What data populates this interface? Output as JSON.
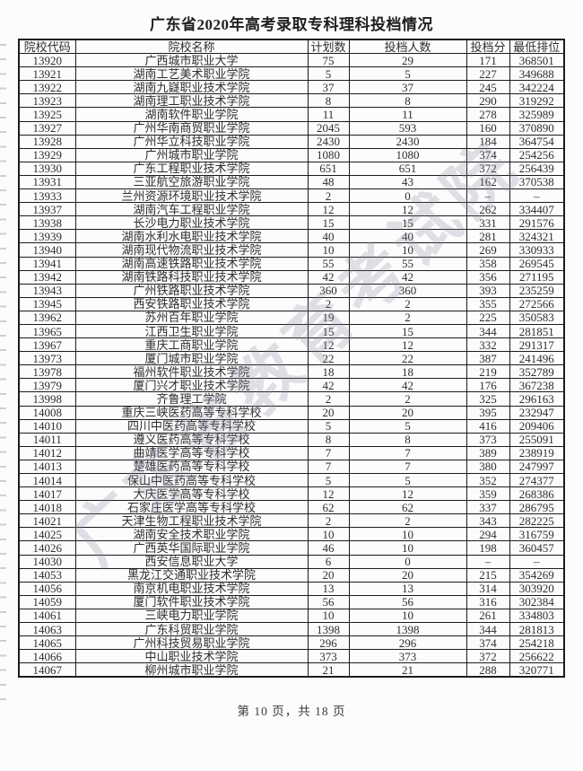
{
  "title": "广东省2020年高考录取专科理科投档情况",
  "watermark": "广东省教育考试院",
  "footer": {
    "page_info": "第 10 页，共 18 页"
  },
  "table": {
    "headers": [
      "院校代码",
      "院校名称",
      "计划数",
      "投档人数",
      "投档分",
      "最低排位"
    ],
    "rows": [
      [
        "13920",
        "广西城市职业大学",
        "75",
        "29",
        "171",
        "368501"
      ],
      [
        "13921",
        "湖南工艺美术职业学院",
        "5",
        "5",
        "227",
        "349688"
      ],
      [
        "13922",
        "湖南九嶷职业技术学院",
        "37",
        "37",
        "245",
        "342224"
      ],
      [
        "13923",
        "湖南理工职业技术学院",
        "8",
        "8",
        "290",
        "319292"
      ],
      [
        "13925",
        "湖南软件职业学院",
        "11",
        "11",
        "278",
        "325989"
      ],
      [
        "13927",
        "广州华南商贸职业学院",
        "2045",
        "593",
        "160",
        "370890"
      ],
      [
        "13928",
        "广州华立科技职业学院",
        "2430",
        "2430",
        "184",
        "364754"
      ],
      [
        "13929",
        "广州城市职业学院",
        "1080",
        "1080",
        "374",
        "254256"
      ],
      [
        "13930",
        "广东工程职业技术学院",
        "651",
        "651",
        "372",
        "256439"
      ],
      [
        "13931",
        "三亚航空旅游职业学院",
        "48",
        "43",
        "162",
        "370538"
      ],
      [
        "13933",
        "兰州资源环境职业技术学院",
        "2",
        "0",
        "–",
        "–"
      ],
      [
        "13937",
        "湖南汽车工程职业学院",
        "12",
        "12",
        "262",
        "334407"
      ],
      [
        "13938",
        "长沙电力职业技术学院",
        "15",
        "15",
        "331",
        "291576"
      ],
      [
        "13939",
        "湖南水利水电职业技术学院",
        "40",
        "40",
        "281",
        "324321"
      ],
      [
        "13940",
        "湖南现代物流职业技术学院",
        "10",
        "10",
        "269",
        "330933"
      ],
      [
        "13941",
        "湖南高速铁路职业技术学院",
        "55",
        "55",
        "358",
        "269545"
      ],
      [
        "13942",
        "湖南铁路科技职业技术学院",
        "42",
        "42",
        "356",
        "271195"
      ],
      [
        "13943",
        "广州铁路职业技术学院",
        "360",
        "360",
        "393",
        "235259"
      ],
      [
        "13945",
        "西安铁路职业技术学院",
        "2",
        "2",
        "355",
        "272566"
      ],
      [
        "13962",
        "苏州百年职业学院",
        "19",
        "2",
        "225",
        "350583"
      ],
      [
        "13965",
        "江西卫生职业学院",
        "15",
        "15",
        "344",
        "281851"
      ],
      [
        "13967",
        "重庆工商职业学院",
        "12",
        "12",
        "332",
        "291317"
      ],
      [
        "13973",
        "厦门城市职业学院",
        "22",
        "22",
        "387",
        "241496"
      ],
      [
        "13978",
        "福州软件职业技术学院",
        "18",
        "18",
        "219",
        "352789"
      ],
      [
        "13979",
        "厦门兴才职业技术学院",
        "42",
        "42",
        "176",
        "367238"
      ],
      [
        "13998",
        "齐鲁理工学院",
        "2",
        "2",
        "325",
        "296163"
      ],
      [
        "14008",
        "重庆三峡医药高等专科学校",
        "20",
        "20",
        "395",
        "232947"
      ],
      [
        "14010",
        "四川中医药高等专科学校",
        "5",
        "5",
        "416",
        "209406"
      ],
      [
        "14011",
        "遵义医药高等专科学校",
        "8",
        "8",
        "373",
        "255091"
      ],
      [
        "14012",
        "曲靖医学高等专科学校",
        "7",
        "7",
        "389",
        "238919"
      ],
      [
        "14013",
        "楚雄医药高等专科学校",
        "7",
        "7",
        "380",
        "247997"
      ],
      [
        "14014",
        "保山中医药高等专科学校",
        "5",
        "5",
        "352",
        "274377"
      ],
      [
        "14017",
        "大庆医学高等专科学校",
        "12",
        "12",
        "359",
        "268386"
      ],
      [
        "14018",
        "石家庄医学高等专科学校",
        "62",
        "62",
        "337",
        "286795"
      ],
      [
        "14021",
        "天津生物工程职业技术学院",
        "2",
        "2",
        "343",
        "282225"
      ],
      [
        "14025",
        "湖南安全技术职业学院",
        "10",
        "10",
        "294",
        "316759"
      ],
      [
        "14026",
        "广西英华国际职业学院",
        "46",
        "10",
        "198",
        "360457"
      ],
      [
        "14030",
        "西安信息职业大学",
        "6",
        "0",
        "–",
        "–"
      ],
      [
        "14053",
        "黑龙江交通职业技术学院",
        "20",
        "20",
        "215",
        "354269"
      ],
      [
        "14056",
        "南京机电职业技术学院",
        "13",
        "13",
        "314",
        "303920"
      ],
      [
        "14059",
        "厦门软件职业技术学院",
        "56",
        "56",
        "316",
        "302384"
      ],
      [
        "14061",
        "三峡电力职业学院",
        "10",
        "10",
        "261",
        "334803"
      ],
      [
        "14063",
        "广东科贸职业学院",
        "1398",
        "1398",
        "344",
        "281813"
      ],
      [
        "14065",
        "广州科技贸易职业学院",
        "296",
        "296",
        "374",
        "254218"
      ],
      [
        "14066",
        "中山职业技术学院",
        "373",
        "373",
        "372",
        "256622"
      ],
      [
        "14067",
        "柳州城市职业学院",
        "21",
        "21",
        "288",
        "320771"
      ]
    ]
  },
  "colors": {
    "border": "#1c1c1c",
    "text": "#2e2e2e",
    "watermark": "rgba(143,135,158,0.26)",
    "background": "#fcfcfc"
  }
}
